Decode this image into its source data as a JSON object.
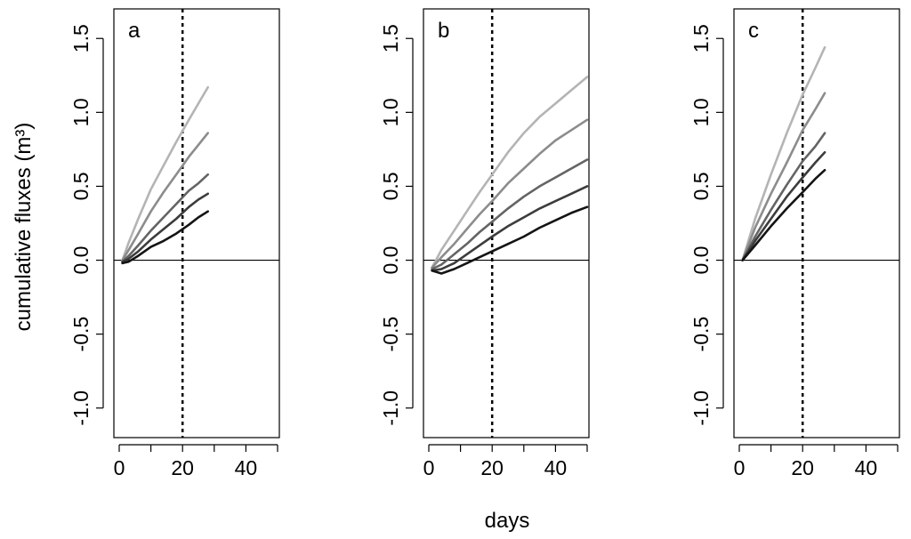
{
  "chart_data": {
    "type": "line",
    "ylabel": "cumulative fluxes (m³)",
    "xlabel": "days",
    "xlim": [
      0,
      50
    ],
    "ylim": [
      -1.2,
      1.7
    ],
    "x_ticks": [
      0,
      20,
      40
    ],
    "x_tick_labels": [
      "0",
      "20",
      "40"
    ],
    "y_ticks": [
      -1.0,
      -0.5,
      0.0,
      0.5,
      1.0,
      1.5
    ],
    "y_tick_labels": [
      "-1.0",
      "-0.5",
      "0.0",
      "0.5",
      "1.0",
      "1.5"
    ],
    "reference_lines": {
      "horizontal_y": 0,
      "vertical_dashed_x": 20
    },
    "panels": [
      {
        "label": "a",
        "series": [
          {
            "color": "#b4b4b4",
            "x": [
              1,
              3,
              6,
              10,
              14,
              18,
              22,
              25,
              28
            ],
            "y": [
              0.0,
              0.12,
              0.28,
              0.48,
              0.64,
              0.8,
              0.95,
              1.06,
              1.17
            ]
          },
          {
            "color": "#8c8c8c",
            "x": [
              1,
              3,
              6,
              10,
              14,
              18,
              22,
              25,
              28
            ],
            "y": [
              0.0,
              0.07,
              0.18,
              0.33,
              0.46,
              0.58,
              0.7,
              0.78,
              0.86
            ]
          },
          {
            "color": "#646464",
            "x": [
              1,
              3,
              6,
              10,
              14,
              18,
              22,
              25,
              28
            ],
            "y": [
              -0.01,
              0.03,
              0.1,
              0.2,
              0.29,
              0.38,
              0.47,
              0.52,
              0.58
            ]
          },
          {
            "color": "#3c3c3c",
            "x": [
              1,
              3,
              6,
              10,
              14,
              18,
              22,
              25,
              28
            ],
            "y": [
              -0.01,
              0.01,
              0.06,
              0.14,
              0.21,
              0.28,
              0.36,
              0.41,
              0.45
            ]
          },
          {
            "color": "#141414",
            "x": [
              1,
              3,
              6,
              10,
              14,
              18,
              22,
              25,
              28
            ],
            "y": [
              -0.02,
              -0.01,
              0.03,
              0.09,
              0.13,
              0.18,
              0.24,
              0.29,
              0.33
            ]
          }
        ]
      },
      {
        "label": "b",
        "series": [
          {
            "color": "#b4b4b4",
            "x": [
              1,
              4,
              8,
              12,
              16,
              20,
              25,
              30,
              35,
              40,
              45,
              50
            ],
            "y": [
              -0.05,
              0.07,
              0.2,
              0.33,
              0.46,
              0.58,
              0.73,
              0.86,
              0.97,
              1.06,
              1.15,
              1.24
            ]
          },
          {
            "color": "#8c8c8c",
            "x": [
              1,
              4,
              8,
              12,
              16,
              20,
              25,
              30,
              35,
              40,
              45,
              50
            ],
            "y": [
              -0.05,
              0.02,
              0.11,
              0.21,
              0.31,
              0.4,
              0.52,
              0.62,
              0.72,
              0.81,
              0.88,
              0.95
            ]
          },
          {
            "color": "#646464",
            "x": [
              1,
              4,
              8,
              12,
              16,
              20,
              25,
              30,
              35,
              40,
              45,
              50
            ],
            "y": [
              -0.06,
              -0.03,
              0.04,
              0.11,
              0.19,
              0.26,
              0.35,
              0.43,
              0.5,
              0.56,
              0.62,
              0.68
            ]
          },
          {
            "color": "#3c3c3c",
            "x": [
              1,
              4,
              8,
              12,
              16,
              20,
              25,
              30,
              35,
              40,
              45,
              50
            ],
            "y": [
              -0.07,
              -0.06,
              -0.02,
              0.04,
              0.1,
              0.16,
              0.23,
              0.29,
              0.35,
              0.4,
              0.45,
              0.5
            ]
          },
          {
            "color": "#141414",
            "x": [
              1,
              4,
              8,
              12,
              16,
              20,
              25,
              30,
              35,
              40,
              45,
              50
            ],
            "y": [
              -0.07,
              -0.09,
              -0.06,
              -0.02,
              0.02,
              0.06,
              0.11,
              0.16,
              0.22,
              0.27,
              0.32,
              0.36
            ]
          }
        ]
      },
      {
        "label": "c",
        "series": [
          {
            "color": "#b4b4b4",
            "x": [
              1,
              5,
              10,
              15,
              20,
              24,
              27
            ],
            "y": [
              0.0,
              0.28,
              0.58,
              0.86,
              1.12,
              1.3,
              1.44
            ]
          },
          {
            "color": "#8c8c8c",
            "x": [
              1,
              5,
              10,
              15,
              20,
              24,
              27
            ],
            "y": [
              0.0,
              0.22,
              0.45,
              0.66,
              0.88,
              1.02,
              1.13
            ]
          },
          {
            "color": "#646464",
            "x": [
              1,
              5,
              10,
              15,
              20,
              24,
              27
            ],
            "y": [
              0.0,
              0.16,
              0.34,
              0.51,
              0.67,
              0.77,
              0.86
            ]
          },
          {
            "color": "#3c3c3c",
            "x": [
              1,
              5,
              10,
              15,
              20,
              24,
              27
            ],
            "y": [
              0.0,
              0.13,
              0.28,
              0.43,
              0.56,
              0.66,
              0.73
            ]
          },
          {
            "color": "#141414",
            "x": [
              1,
              5,
              10,
              15,
              20,
              24,
              27
            ],
            "y": [
              0.0,
              0.1,
              0.23,
              0.35,
              0.46,
              0.55,
              0.61
            ]
          }
        ]
      }
    ]
  }
}
